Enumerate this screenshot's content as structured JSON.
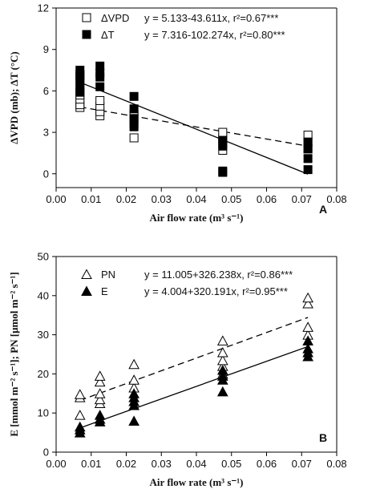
{
  "chart_data": [
    {
      "panel": "A",
      "type": "scatter",
      "xlabel": "Air flow rate (m³ s⁻¹)",
      "ylabel": "ΔVPD (mb); ΔT (°C)",
      "xlim": [
        0,
        0.08
      ],
      "ylim": [
        -1,
        12
      ],
      "xticks": [
        "0.00",
        "0.01",
        "0.02",
        "0.03",
        "0.04",
        "0.05",
        "0.06",
        "0.07",
        "0.08"
      ],
      "yticks": [
        "0",
        "3",
        "6",
        "9",
        "12"
      ],
      "legend_position": "top-left",
      "series": [
        {
          "name": "ΔVPD",
          "marker": "open-square",
          "equation": "y = 5.133-43.611x, r²=0.67***",
          "fit": {
            "intercept": 5.133,
            "slope": -43.611,
            "line": "dashed"
          },
          "points": [
            [
              0.0068,
              4.8
            ],
            [
              0.0068,
              5.0
            ],
            [
              0.0068,
              5.4
            ],
            [
              0.0068,
              5.7
            ],
            [
              0.0068,
              6.0
            ],
            [
              0.0068,
              7.1
            ],
            [
              0.0125,
              4.2
            ],
            [
              0.0125,
              4.5
            ],
            [
              0.0125,
              4.9
            ],
            [
              0.0125,
              5.3
            ],
            [
              0.0222,
              2.6
            ],
            [
              0.0222,
              3.6
            ],
            [
              0.0222,
              4.0
            ],
            [
              0.0222,
              4.3
            ],
            [
              0.0475,
              1.7
            ],
            [
              0.0475,
              2.2
            ],
            [
              0.0475,
              2.6
            ],
            [
              0.0475,
              3.0
            ],
            [
              0.0718,
              1.8
            ],
            [
              0.0718,
              2.3
            ],
            [
              0.0718,
              2.8
            ]
          ]
        },
        {
          "name": "ΔT",
          "marker": "filled-square",
          "equation": "y = 7.316-102.274x, r²=0.80***",
          "fit": {
            "intercept": 7.316,
            "slope": -102.274,
            "line": "solid"
          },
          "points": [
            [
              0.0068,
              5.9
            ],
            [
              0.0068,
              6.3
            ],
            [
              0.0068,
              6.6
            ],
            [
              0.0068,
              6.9
            ],
            [
              0.0068,
              7.2
            ],
            [
              0.0068,
              7.5
            ],
            [
              0.0125,
              6.3
            ],
            [
              0.0125,
              7.0
            ],
            [
              0.0125,
              7.3
            ],
            [
              0.0125,
              7.8
            ],
            [
              0.0222,
              3.4
            ],
            [
              0.0222,
              4.0
            ],
            [
              0.0222,
              4.7
            ],
            [
              0.0222,
              5.6
            ],
            [
              0.0475,
              0.1
            ],
            [
              0.0475,
              0.2
            ],
            [
              0.0475,
              2.0
            ],
            [
              0.0475,
              2.4
            ],
            [
              0.0718,
              0.3
            ],
            [
              0.0718,
              1.1
            ],
            [
              0.0718,
              1.8
            ],
            [
              0.0718,
              2.3
            ]
          ]
        }
      ]
    },
    {
      "panel": "B",
      "type": "scatter",
      "xlabel": "Air flow rate (m³ s⁻¹)",
      "ylabel": "E [mmol m⁻² s⁻¹]; PN [μmol m⁻² s⁻¹]",
      "xlim": [
        0,
        0.08
      ],
      "ylim": [
        0,
        50
      ],
      "xticks": [
        "0.00",
        "0.01",
        "0.02",
        "0.03",
        "0.04",
        "0.05",
        "0.06",
        "0.07",
        "0.08"
      ],
      "yticks": [
        "0",
        "10",
        "20",
        "30",
        "40",
        "50"
      ],
      "legend_position": "top-left",
      "series": [
        {
          "name": "PN",
          "marker": "open-triangle",
          "equation": "y = 11.005+326.238x, r²=0.86***",
          "fit": {
            "intercept": 11.005,
            "slope": 326.238,
            "line": "dashed"
          },
          "points": [
            [
              0.0068,
              9.5
            ],
            [
              0.0068,
              14.0
            ],
            [
              0.0068,
              14.8
            ],
            [
              0.0125,
              12.5
            ],
            [
              0.0125,
              13.5
            ],
            [
              0.0125,
              15.0
            ],
            [
              0.0125,
              18.0
            ],
            [
              0.0125,
              19.5
            ],
            [
              0.0222,
              16.5
            ],
            [
              0.0222,
              18.5
            ],
            [
              0.0222,
              22.5
            ],
            [
              0.0475,
              20.0
            ],
            [
              0.0475,
              22.0
            ],
            [
              0.0475,
              23.5
            ],
            [
              0.0475,
              25.5
            ],
            [
              0.0475,
              28.5
            ],
            [
              0.0718,
              30.0
            ],
            [
              0.0718,
              32.0
            ],
            [
              0.0718,
              38.0
            ],
            [
              0.0718,
              39.5
            ]
          ]
        },
        {
          "name": "E",
          "marker": "filled-triangle",
          "equation": "y = 4.004+320.191x, r²=0.95***",
          "fit": {
            "intercept": 4.004,
            "slope": 320.191,
            "line": "solid"
          },
          "points": [
            [
              0.0068,
              5.0
            ],
            [
              0.0068,
              5.8
            ],
            [
              0.0068,
              6.5
            ],
            [
              0.0125,
              7.8
            ],
            [
              0.0125,
              8.5
            ],
            [
              0.0125,
              9.5
            ],
            [
              0.0222,
              8.0
            ],
            [
              0.0222,
              12.0
            ],
            [
              0.0222,
              13.0
            ],
            [
              0.0222,
              14.0
            ],
            [
              0.0222,
              15.0
            ],
            [
              0.0475,
              15.5
            ],
            [
              0.0475,
              18.5
            ],
            [
              0.0475,
              19.5
            ],
            [
              0.0475,
              21.0
            ],
            [
              0.0718,
              24.5
            ],
            [
              0.0718,
              25.5
            ],
            [
              0.0718,
              26.5
            ],
            [
              0.0718,
              28.5
            ]
          ]
        }
      ]
    }
  ]
}
